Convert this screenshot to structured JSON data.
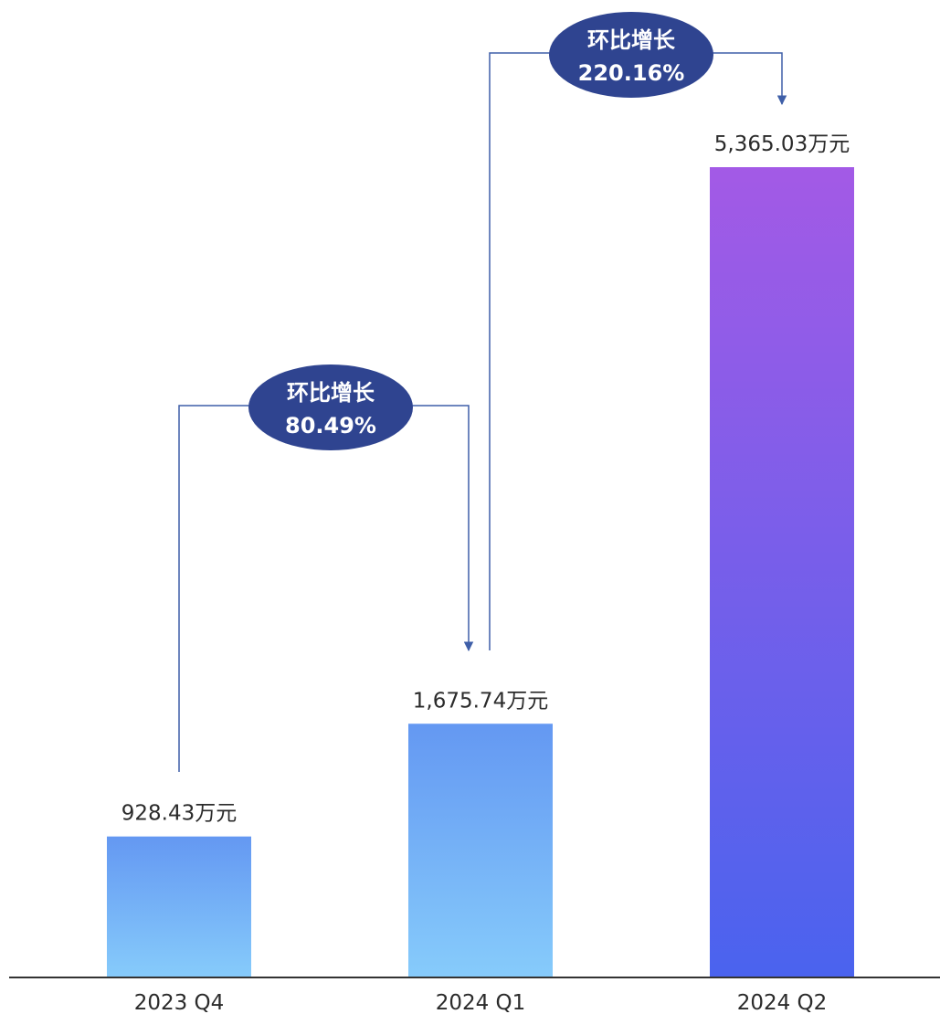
{
  "chart_data": {
    "type": "bar",
    "title": "",
    "xlabel": "",
    "ylabel": "",
    "grid": false,
    "categories": [
      "2023 Q4",
      "2024 Q1",
      "2024 Q2"
    ],
    "values": [
      928.43,
      1675.74,
      5365.03
    ],
    "value_labels": [
      "928.43万元",
      "1,675.74万元",
      "5,365.03万元"
    ],
    "ylim": [
      0,
      5800
    ],
    "annotations": [
      {
        "from": "2023 Q4",
        "to": "2024 Q1",
        "line1": "环比增长",
        "line2": "80.49%"
      },
      {
        "from": "2024 Q1",
        "to": "2024 Q2",
        "line1": "环比增长",
        "line2": "220.16%"
      }
    ]
  },
  "colors": {
    "bar_light_top": "#6498f2",
    "bar_light_bottom": "#86cbfb",
    "bar_purple_top": "#a35ae6",
    "bar_purple_bottom": "#4a63ee",
    "connector": "#3f5fa8",
    "callout_fill": "#2f4490",
    "axis": "#333333"
  }
}
